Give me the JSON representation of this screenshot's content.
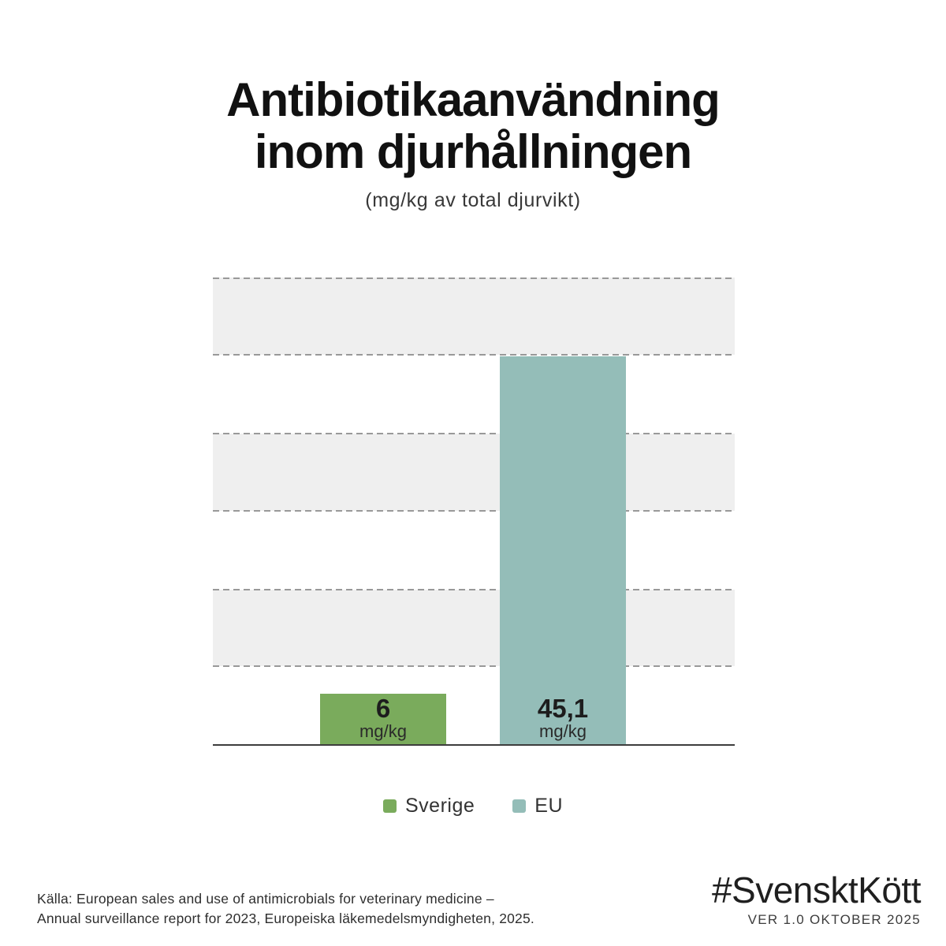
{
  "title": {
    "line1": "Antibiotikaanvändning",
    "line2": "inom djurhållningen",
    "subtitle": "(mg/kg av total djurvikt)"
  },
  "chart_data": {
    "type": "bar",
    "title": "Antibiotikaanvändning inom djurhållningen",
    "subtitle": "(mg/kg av total djurvikt)",
    "categories": [
      "Sverige",
      "EU"
    ],
    "values": [
      6,
      45.1
    ],
    "value_labels": [
      "6",
      "45,1"
    ],
    "unit": "mg/kg",
    "colors": [
      "#7aab5c",
      "#94bdb8"
    ],
    "xlabel": "",
    "ylabel": "mg/kg av total djurvikt",
    "ylim": [
      0,
      54.2
    ],
    "grid": "horizontal striped bands with dashed gray borders, no tick labels",
    "legend_position": "bottom"
  },
  "legend": {
    "items": [
      {
        "label": "Sverige",
        "color": "#7aab5c"
      },
      {
        "label": "EU",
        "color": "#94bdb8"
      }
    ]
  },
  "footer": {
    "source_line1": "Källa: European sales and use of antimicrobials for veterinary medicine –",
    "source_line2": "Annual surveillance report for 2023, Europeiska läkemedelsmyndigheten, 2025.",
    "hashtag": "#SvensktKött",
    "version": "VER 1.0 OKTOBER 2025"
  },
  "colors": {
    "background": "#ffffff",
    "band_gray": "#efefef",
    "dash_gray": "#999999",
    "axis_line": "#3d3d3d",
    "sverige_green": "#7aab5c",
    "eu_teal": "#94bdb8",
    "text_dark": "#111111"
  }
}
